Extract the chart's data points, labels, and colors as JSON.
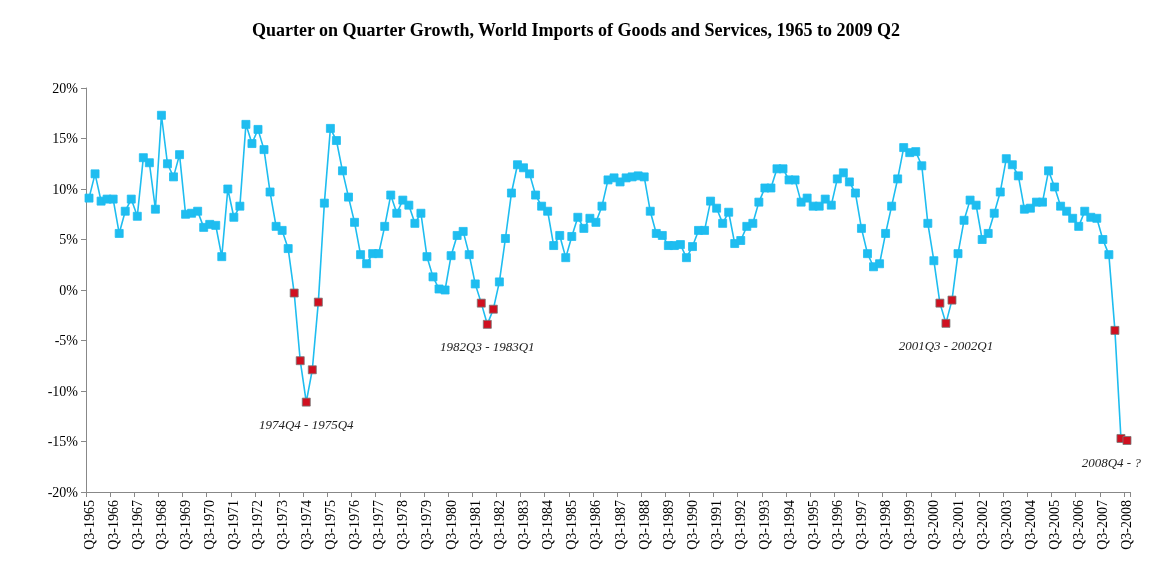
{
  "chart_data": {
    "type": "line",
    "title": "Quarter on Quarter Growth, World Imports of Goods and Services, 1965 to 2009 Q2",
    "categories": [
      "Q3-1965",
      null,
      null,
      null,
      "Q3-1966",
      null,
      null,
      null,
      "Q3-1967",
      null,
      null,
      null,
      "Q3-1968",
      null,
      null,
      null,
      "Q3-1969",
      null,
      null,
      null,
      "Q3-1970",
      null,
      null,
      null,
      "Q3-1971",
      null,
      null,
      null,
      "Q3-1972",
      null,
      null,
      null,
      "Q3-1973",
      null,
      null,
      null,
      "Q3-1974",
      null,
      null,
      null,
      "Q3-1975",
      null,
      null,
      null,
      "Q3-1976",
      null,
      null,
      null,
      "Q3-1977",
      null,
      null,
      null,
      "Q3-1978",
      null,
      null,
      null,
      "Q3-1979",
      null,
      null,
      null,
      "Q3-1980",
      null,
      null,
      null,
      "Q3-1981",
      null,
      null,
      null,
      "Q3-1982",
      null,
      null,
      null,
      "Q3-1983",
      null,
      null,
      null,
      "Q3-1984",
      null,
      null,
      null,
      "Q3-1985",
      null,
      null,
      null,
      "Q3-1986",
      null,
      null,
      null,
      "Q3-1987",
      null,
      null,
      null,
      "Q3-1988",
      null,
      null,
      null,
      "Q3-1989",
      null,
      null,
      null,
      "Q3-1990",
      null,
      null,
      null,
      "Q3-1991",
      null,
      null,
      null,
      "Q3-1992",
      null,
      null,
      null,
      "Q3-1993",
      null,
      null,
      null,
      "Q3-1994",
      null,
      null,
      null,
      "Q3-1995",
      null,
      null,
      null,
      "Q3-1996",
      null,
      null,
      null,
      "Q3-1997",
      null,
      null,
      null,
      "Q3-1998",
      null,
      null,
      null,
      "Q3-1999",
      null,
      null,
      null,
      "Q3-2000",
      null,
      null,
      null,
      "Q3-2001",
      null,
      null,
      null,
      "Q3-2002",
      null,
      null,
      null,
      "Q3-2003",
      null,
      null,
      null,
      "Q3-2004",
      null,
      null,
      null,
      "Q3-2005",
      null,
      null,
      null,
      "Q3-2006",
      null,
      null,
      null,
      "Q3-2007",
      null,
      null,
      null,
      "Q3-2008"
    ],
    "series": [
      {
        "color": "#1ebdf0",
        "values": [
          9.1,
          11.5,
          8.8,
          9.0,
          9.0,
          5.6,
          7.8,
          9.0,
          7.3,
          13.1,
          12.6,
          8.0,
          17.3,
          12.5,
          11.2,
          13.4,
          7.5,
          7.6,
          7.8,
          6.2,
          6.5,
          6.4,
          3.3,
          10.0,
          7.2,
          8.3,
          16.4,
          14.5,
          15.9,
          13.9,
          9.7,
          6.3,
          5.9,
          4.1,
          -0.3,
          -7.0,
          -11.1,
          -7.9,
          -1.2,
          8.6,
          16.0,
          14.8,
          11.8,
          9.2,
          6.7,
          3.5,
          2.6,
          3.6,
          3.6,
          6.3,
          9.4,
          7.6,
          8.9,
          8.4,
          6.6,
          7.6,
          3.3,
          1.3,
          0.1,
          0.0,
          3.4,
          5.4,
          5.8,
          3.5,
          0.6,
          -1.3,
          -3.4,
          -1.9,
          0.8,
          5.1,
          9.6,
          12.4,
          12.1,
          11.5,
          9.4,
          8.3,
          7.8,
          4.4,
          5.4,
          3.2,
          5.3,
          7.2,
          6.1,
          7.1,
          6.7,
          8.3,
          10.9,
          11.1,
          10.7,
          11.1,
          11.2,
          11.3,
          11.2,
          7.8,
          5.6,
          5.4,
          4.4,
          4.4,
          4.5,
          3.2,
          4.3,
          5.9,
          5.9,
          8.8,
          8.1,
          6.6,
          7.7,
          4.6,
          4.9,
          6.3,
          6.6,
          8.7,
          10.1,
          10.1,
          12.0,
          12.0,
          10.9,
          10.9,
          8.7,
          9.1,
          8.3,
          8.3,
          9.0,
          8.4,
          11.0,
          11.6,
          10.7,
          9.6,
          6.1,
          3.6,
          2.3,
          2.6,
          5.6,
          8.3,
          11.0,
          14.1,
          13.6,
          13.7,
          12.3,
          6.6,
          2.9,
          -1.3,
          -3.3,
          -1.0,
          3.6,
          6.9,
          8.9,
          8.4,
          5.0,
          5.6,
          7.6,
          9.7,
          13.0,
          12.4,
          11.3,
          8.0,
          8.1,
          8.7,
          8.7,
          11.8,
          10.2,
          8.3,
          7.8,
          7.1,
          6.3,
          7.8,
          7.2,
          7.1,
          5.0,
          3.5,
          -4.0,
          -14.7,
          -14.9
        ],
        "colors": [
          "#1ebdf0",
          "#1ebdf0",
          "#1ebdf0",
          "#1ebdf0",
          "#1ebdf0",
          "#1ebdf0",
          "#1ebdf0",
          "#1ebdf0",
          "#1ebdf0",
          "#1ebdf0",
          "#1ebdf0",
          "#1ebdf0",
          "#1ebdf0",
          "#1ebdf0",
          "#1ebdf0",
          "#1ebdf0",
          "#1ebdf0",
          "#1ebdf0",
          "#1ebdf0",
          "#1ebdf0",
          "#1ebdf0",
          "#1ebdf0",
          "#1ebdf0",
          "#1ebdf0",
          "#1ebdf0",
          "#1ebdf0",
          "#1ebdf0",
          "#1ebdf0",
          "#1ebdf0",
          "#1ebdf0",
          "#1ebdf0",
          "#1ebdf0",
          "#1ebdf0",
          "#1ebdf0",
          "#d01020",
          "#d01020",
          "#d01020",
          "#d01020",
          "#d01020",
          "#1ebdf0",
          "#1ebdf0",
          "#1ebdf0",
          "#1ebdf0",
          "#1ebdf0",
          "#1ebdf0",
          "#1ebdf0",
          "#1ebdf0",
          "#1ebdf0",
          "#1ebdf0",
          "#1ebdf0",
          "#1ebdf0",
          "#1ebdf0",
          "#1ebdf0",
          "#1ebdf0",
          "#1ebdf0",
          "#1ebdf0",
          "#1ebdf0",
          "#1ebdf0",
          "#1ebdf0",
          "#1ebdf0",
          "#1ebdf0",
          "#1ebdf0",
          "#1ebdf0",
          "#1ebdf0",
          "#1ebdf0",
          "#d01020",
          "#d01020",
          "#d01020",
          "#1ebdf0",
          "#1ebdf0",
          "#1ebdf0",
          "#1ebdf0",
          "#1ebdf0",
          "#1ebdf0",
          "#1ebdf0",
          "#1ebdf0",
          "#1ebdf0",
          "#1ebdf0",
          "#1ebdf0",
          "#1ebdf0",
          "#1ebdf0",
          "#1ebdf0",
          "#1ebdf0",
          "#1ebdf0",
          "#1ebdf0",
          "#1ebdf0",
          "#1ebdf0",
          "#1ebdf0",
          "#1ebdf0",
          "#1ebdf0",
          "#1ebdf0",
          "#1ebdf0",
          "#1ebdf0",
          "#1ebdf0",
          "#1ebdf0",
          "#1ebdf0",
          "#1ebdf0",
          "#1ebdf0",
          "#1ebdf0",
          "#1ebdf0",
          "#1ebdf0",
          "#1ebdf0",
          "#1ebdf0",
          "#1ebdf0",
          "#1ebdf0",
          "#1ebdf0",
          "#1ebdf0",
          "#1ebdf0",
          "#1ebdf0",
          "#1ebdf0",
          "#1ebdf0",
          "#1ebdf0",
          "#1ebdf0",
          "#1ebdf0",
          "#1ebdf0",
          "#1ebdf0",
          "#1ebdf0",
          "#1ebdf0",
          "#1ebdf0",
          "#1ebdf0",
          "#1ebdf0",
          "#1ebdf0",
          "#1ebdf0",
          "#1ebdf0",
          "#1ebdf0",
          "#1ebdf0",
          "#1ebdf0",
          "#1ebdf0",
          "#1ebdf0",
          "#1ebdf0",
          "#1ebdf0",
          "#1ebdf0",
          "#1ebdf0",
          "#1ebdf0",
          "#1ebdf0",
          "#1ebdf0",
          "#1ebdf0",
          "#1ebdf0",
          "#1ebdf0",
          "#1ebdf0",
          "#1ebdf0",
          "#d01020",
          "#d01020",
          "#d01020",
          "#1ebdf0",
          "#1ebdf0",
          "#1ebdf0",
          "#1ebdf0",
          "#1ebdf0",
          "#1ebdf0",
          "#1ebdf0",
          "#1ebdf0",
          "#1ebdf0",
          "#1ebdf0",
          "#1ebdf0",
          "#1ebdf0",
          "#1ebdf0",
          "#1ebdf0",
          "#1ebdf0",
          "#1ebdf0",
          "#1ebdf0",
          "#1ebdf0",
          "#1ebdf0",
          "#1ebdf0",
          "#1ebdf0",
          "#1ebdf0",
          "#1ebdf0",
          "#1ebdf0",
          "#1ebdf0",
          "#1ebdf0",
          "#d01020",
          "#d01020",
          "#d01020"
        ]
      }
    ],
    "annotations": [
      "1974Q4 - 1975Q4",
      "1982Q3 - 1983Q1",
      "2001Q3 - 2002Q1",
      "2008Q4 - ?"
    ],
    "ylim": [
      -20,
      20
    ],
    "yticks": [
      {
        "value": -20,
        "label": "-20%"
      },
      {
        "value": -15,
        "label": "-15%"
      },
      {
        "value": -10,
        "label": "-10%"
      },
      {
        "value": -5,
        "label": "-5%"
      },
      {
        "value": 0,
        "label": "0%"
      },
      {
        "value": 5,
        "label": "5%"
      },
      {
        "value": 10,
        "label": "10%"
      },
      {
        "value": 15,
        "label": "15%"
      },
      {
        "value": 20,
        "label": "20%"
      }
    ],
    "marker": "square"
  }
}
